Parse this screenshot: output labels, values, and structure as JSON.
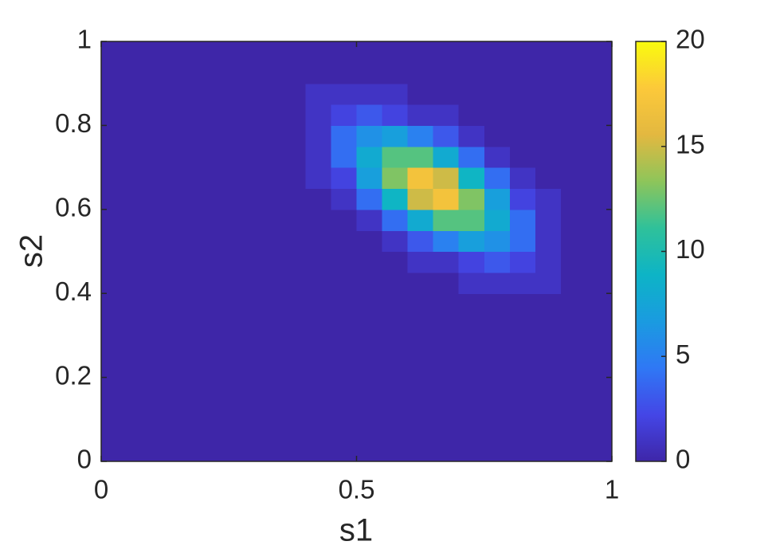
{
  "chart_data": {
    "type": "heatmap",
    "xlabel": "s1",
    "ylabel": "s2",
    "xlim": [
      0,
      1
    ],
    "ylim": [
      0,
      1
    ],
    "xticks": [
      0,
      0.5,
      1
    ],
    "yticks": [
      0,
      0.2,
      0.4,
      0.6,
      0.8,
      1
    ],
    "clim": [
      0,
      20
    ],
    "cticks": [
      0,
      5,
      10,
      15,
      20
    ],
    "colormap": [
      "#3e26a8",
      "#4446e6",
      "#2f78f5",
      "#1a9be0",
      "#0db4c6",
      "#2fc19a",
      "#8ec55a",
      "#e3b840",
      "#fcc93a",
      "#f9fb0e"
    ],
    "x": [
      0.025,
      0.075,
      0.125,
      0.175,
      0.225,
      0.275,
      0.325,
      0.375,
      0.425,
      0.475,
      0.525,
      0.575,
      0.625,
      0.675,
      0.725,
      0.775,
      0.825,
      0.875,
      0.925,
      0.975
    ],
    "y": [
      0.025,
      0.075,
      0.125,
      0.175,
      0.225,
      0.275,
      0.325,
      0.375,
      0.425,
      0.475,
      0.525,
      0.575,
      0.625,
      0.675,
      0.725,
      0.775,
      0.825,
      0.875,
      0.925,
      0.975
    ],
    "z": [
      [
        0,
        0,
        0,
        0,
        0,
        0,
        0,
        0,
        0,
        0,
        0,
        0,
        0,
        0,
        0,
        0,
        0,
        0,
        0,
        0
      ],
      [
        0,
        0,
        0,
        0,
        0,
        0,
        0,
        0,
        0,
        0,
        0,
        0,
        0,
        0,
        0,
        0,
        0,
        0,
        0,
        0
      ],
      [
        0,
        0,
        0,
        0,
        0,
        0,
        0,
        0,
        0,
        0,
        0,
        0,
        0,
        0,
        0,
        0,
        0,
        0,
        0,
        0
      ],
      [
        0,
        0,
        0,
        0,
        0,
        0,
        0,
        0,
        0,
        0,
        0,
        0,
        0,
        0,
        0,
        0,
        0,
        0,
        0,
        0
      ],
      [
        0,
        0,
        0,
        0,
        0,
        0,
        0,
        0,
        0,
        0,
        0,
        0,
        0,
        0,
        0,
        0,
        0,
        0,
        0,
        0
      ],
      [
        0,
        0,
        0,
        0,
        0,
        0,
        0,
        0,
        0,
        0,
        0,
        0,
        0,
        0,
        0,
        0,
        0,
        0,
        0,
        0
      ],
      [
        0,
        0,
        0,
        0,
        0,
        0,
        0,
        0,
        0,
        0,
        0,
        0,
        0,
        0,
        0,
        0,
        0,
        0,
        0,
        0
      ],
      [
        0,
        0,
        0,
        0,
        0,
        0,
        0,
        0,
        0,
        0,
        0,
        0,
        0,
        0,
        0,
        0,
        0,
        0,
        0,
        0
      ],
      [
        0,
        0,
        0,
        0,
        0,
        0,
        0,
        0,
        0,
        0,
        0,
        0,
        0,
        0,
        1,
        1,
        1,
        1,
        0,
        0
      ],
      [
        0,
        0,
        0,
        0,
        0,
        0,
        0,
        0,
        0,
        0,
        0,
        0,
        1,
        1,
        2,
        3,
        2,
        1,
        0,
        0
      ],
      [
        0,
        0,
        0,
        0,
        0,
        0,
        0,
        0,
        0,
        0,
        0,
        1,
        3,
        5,
        7,
        6,
        4,
        1,
        0,
        0
      ],
      [
        0,
        0,
        0,
        0,
        0,
        0,
        0,
        0,
        0,
        0,
        1,
        4,
        8,
        12,
        12,
        8,
        4,
        1,
        0,
        0
      ],
      [
        0,
        0,
        0,
        0,
        0,
        0,
        0,
        0,
        0,
        1,
        4,
        9,
        15,
        17,
        13,
        7,
        2,
        1,
        0,
        0
      ],
      [
        0,
        0,
        0,
        0,
        0,
        0,
        0,
        0,
        1,
        2,
        7,
        13,
        17,
        15,
        9,
        4,
        1,
        0,
        0,
        0
      ],
      [
        0,
        0,
        0,
        0,
        0,
        0,
        0,
        0,
        1,
        4,
        8,
        12,
        12,
        8,
        4,
        1,
        0,
        0,
        0,
        0
      ],
      [
        0,
        0,
        0,
        0,
        0,
        0,
        0,
        0,
        1,
        4,
        6,
        7,
        5,
        3,
        1,
        0,
        0,
        0,
        0,
        0
      ],
      [
        0,
        0,
        0,
        0,
        0,
        0,
        0,
        0,
        1,
        2,
        3,
        2,
        1,
        1,
        0,
        0,
        0,
        0,
        0,
        0
      ],
      [
        0,
        0,
        0,
        0,
        0,
        0,
        0,
        0,
        1,
        1,
        1,
        1,
        0,
        0,
        0,
        0,
        0,
        0,
        0,
        0
      ],
      [
        0,
        0,
        0,
        0,
        0,
        0,
        0,
        0,
        0,
        0,
        0,
        0,
        0,
        0,
        0,
        0,
        0,
        0,
        0,
        0
      ],
      [
        0,
        0,
        0,
        0,
        0,
        0,
        0,
        0,
        0,
        0,
        0,
        0,
        0,
        0,
        0,
        0,
        0,
        0,
        0,
        0
      ]
    ]
  }
}
